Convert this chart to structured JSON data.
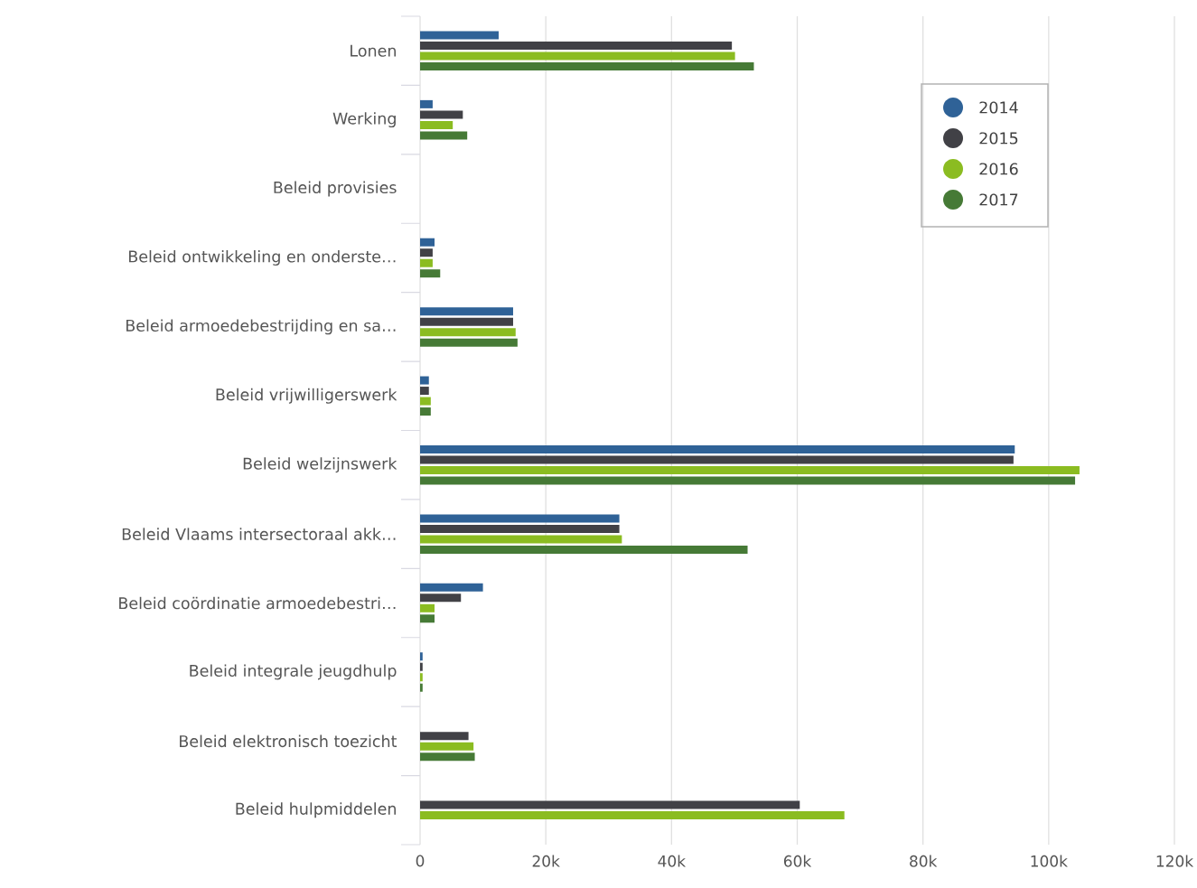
{
  "chart_data": {
    "type": "bar",
    "orientation": "horizontal",
    "categories": [
      "Lonen",
      "Werking",
      "Beleid provisies",
      "Beleid ontwikkeling en onderste…",
      "Beleid armoedebestrijding en sa…",
      "Beleid vrijwilligerswerk",
      "Beleid welzijnswerk",
      "Beleid Vlaams intersectoraal akk…",
      "Beleid coördinatie armoedebestri…",
      "Beleid integrale jeugdhulp",
      "Beleid elektronisch toezicht",
      "Beleid hulpmiddelen"
    ],
    "series": [
      {
        "name": "2014",
        "color": "#2f6297",
        "values": [
          12500,
          2000,
          null,
          2300,
          14800,
          1400,
          94600,
          31700,
          10000,
          400,
          null,
          null
        ]
      },
      {
        "name": "2015",
        "color": "#414146",
        "values": [
          49600,
          6800,
          null,
          2000,
          14800,
          1400,
          94400,
          31700,
          6500,
          400,
          7700,
          60400
        ]
      },
      {
        "name": "2016",
        "color": "#8bbc21",
        "values": [
          50100,
          5200,
          null,
          2000,
          15200,
          1700,
          104900,
          32100,
          2300,
          400,
          8500,
          67500
        ]
      },
      {
        "name": "2017",
        "color": "#467a36",
        "values": [
          53100,
          7500,
          null,
          3200,
          15500,
          1700,
          104200,
          52100,
          2300,
          400,
          8700,
          null
        ]
      }
    ],
    "xlim": [
      0,
      120000
    ],
    "xticks": [
      0,
      {
        "value": 20000,
        "label": "20k"
      },
      {
        "value": 40000,
        "label": "40k"
      },
      {
        "value": 60000,
        "label": "60k"
      },
      {
        "value": 80000,
        "label": "80k"
      },
      {
        "value": 100000,
        "label": "100k"
      },
      {
        "value": 120000,
        "label": "120k"
      }
    ],
    "grid": "x",
    "legend": "top right"
  }
}
